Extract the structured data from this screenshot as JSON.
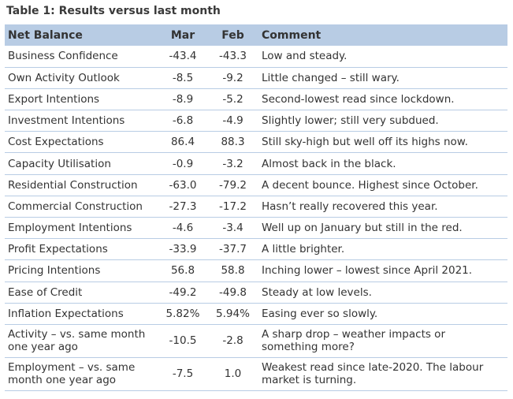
{
  "title": "Table 1: Results versus last month",
  "headers": [
    "Net Balance",
    "Mar",
    "Feb",
    "Comment"
  ],
  "rows": [
    {
      "label": "Business Confidence",
      "mar": "-43.4",
      "feb": "-43.3",
      "comment": "Low and steady."
    },
    {
      "label": "Own Activity Outlook",
      "mar": "-8.5",
      "feb": "-9.2",
      "comment": "Little changed – still wary."
    },
    {
      "label": "Export Intentions",
      "mar": "-8.9",
      "feb": "-5.2",
      "comment": "Second-lowest read since lockdown."
    },
    {
      "label": "Investment Intentions",
      "mar": "-6.8",
      "feb": "-4.9",
      "comment": "Slightly lower; still very subdued."
    },
    {
      "label": "Cost Expectations",
      "mar": "86.4",
      "feb": "88.3",
      "comment": "Still sky-high but well off its highs now."
    },
    {
      "label": "Capacity Utilisation",
      "mar": "-0.9",
      "feb": "-3.2",
      "comment": "Almost back in the black."
    },
    {
      "label": "Residential Construction",
      "mar": "-63.0",
      "feb": "-79.2",
      "comment": "A decent bounce. Highest since October."
    },
    {
      "label": "Commercial Construction",
      "mar": "-27.3",
      "feb": "-17.2",
      "comment": "Hasn’t really recovered this year."
    },
    {
      "label": "Employment Intentions",
      "mar": "-4.6",
      "feb": "-3.4",
      "comment": "Well up on January but still in the red."
    },
    {
      "label": "Profit Expectations",
      "mar": "-33.9",
      "feb": "-37.7",
      "comment": "A little brighter."
    },
    {
      "label": "Pricing Intentions",
      "mar": "56.8",
      "feb": "58.8",
      "comment": "Inching lower – lowest since April 2021."
    },
    {
      "label": "Ease of Credit",
      "mar": "-49.2",
      "feb": "-49.8",
      "comment": "Steady at low levels."
    },
    {
      "label": "Inflation Expectations",
      "mar": "5.82%",
      "feb": "5.94%",
      "comment": "Easing ever so slowly."
    },
    {
      "label": "Activity – vs. same month one year ago",
      "mar": "-10.5",
      "feb": "-2.8",
      "comment": "A sharp drop – weather impacts or something more?"
    },
    {
      "label": "Employment – vs. same month one year ago",
      "mar": "-7.5",
      "feb": "1.0",
      "comment": "Weakest read since late-2020. The labour market is turning."
    }
  ]
}
